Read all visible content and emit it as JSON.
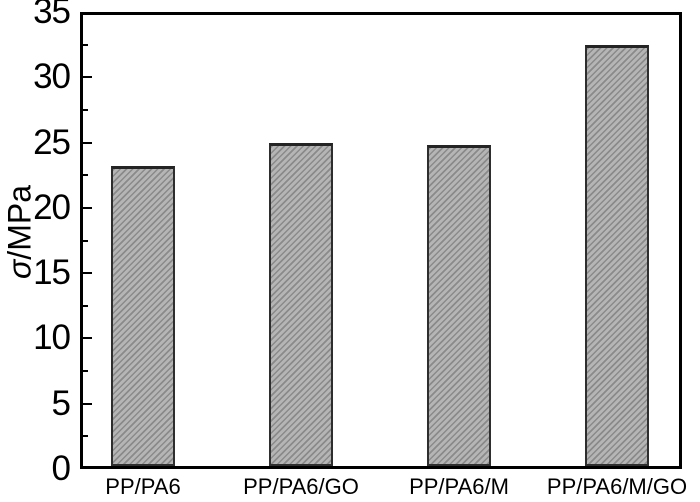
{
  "chart_data": {
    "type": "bar",
    "title": "",
    "categories": [
      "PP/PA6",
      "PP/PA6/GO",
      "PP/PA6/M",
      "PP/PA6/M/GO"
    ],
    "values": [
      23.2,
      25.0,
      24.8,
      32.5
    ],
    "ylabel": "σ/MPa",
    "ylabel_symbol": "σ",
    "ylabel_unit": "/MPa",
    "xlabel": "",
    "ylim": [
      0,
      35
    ],
    "y_major_ticks": [
      0,
      5,
      10,
      15,
      20,
      25,
      30,
      35
    ],
    "y_minor_ticks": [
      2.5,
      7.5,
      12.5,
      17.5,
      22.5,
      27.5,
      32.5
    ],
    "grid": "off",
    "legend": "none",
    "frame": "full-box",
    "tick_direction": "in",
    "colors": {
      "bar_fill": "#b5b5b5",
      "bar_hatch_line": "#8a8a8a",
      "bar_border": "#2e2e2e",
      "axis": "#000000",
      "text": "#000000",
      "background": "#ffffff"
    },
    "hatch_style": "diagonal-forward-slash"
  }
}
